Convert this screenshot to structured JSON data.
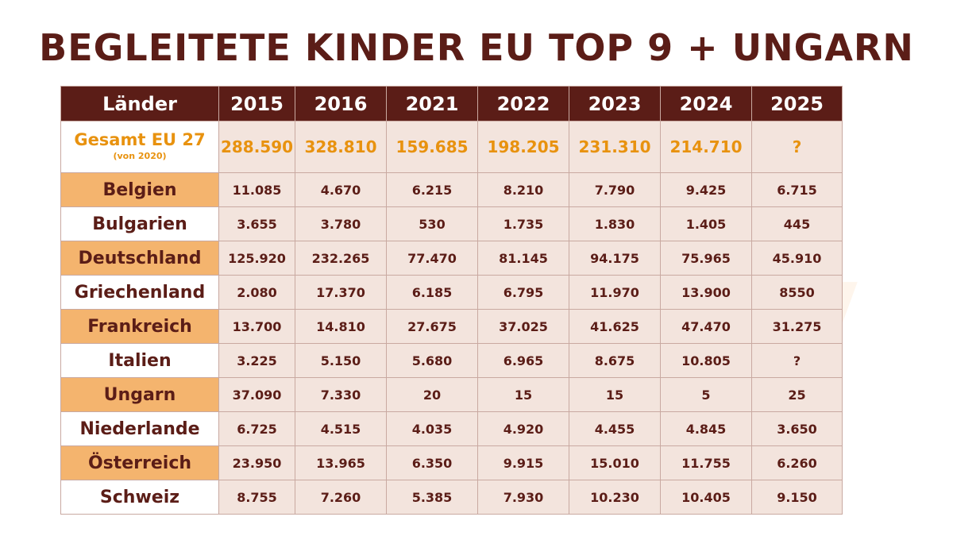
{
  "title": "BEGLEITETE KINDER EU TOP 9 + UNGARN",
  "header": {
    "category_label": "Länder",
    "years": [
      "2015",
      "2016",
      "2021",
      "2022",
      "2023",
      "2024",
      "2025"
    ]
  },
  "total": {
    "label": "Gesamt EU 27",
    "sublabel": "(von 2020)",
    "values": [
      "288.590",
      "328.810",
      "159.685",
      "198.205",
      "231.310",
      "214.710",
      "?"
    ]
  },
  "rows": [
    {
      "country": "Belgien",
      "values": [
        "11.085",
        "4.670",
        "6.215",
        "8.210",
        "7.790",
        "9.425",
        "6.715"
      ]
    },
    {
      "country": "Bulgarien",
      "values": [
        "3.655",
        "3.780",
        "530",
        "1.735",
        "1.830",
        "1.405",
        "445"
      ]
    },
    {
      "country": "Deutschland",
      "values": [
        "125.920",
        "232.265",
        "77.470",
        "81.145",
        "94.175",
        "75.965",
        "45.910"
      ]
    },
    {
      "country": "Griechenland",
      "values": [
        "2.080",
        "17.370",
        "6.185",
        "6.795",
        "11.970",
        "13.900",
        "8550"
      ]
    },
    {
      "country": "Frankreich",
      "values": [
        "13.700",
        "14.810",
        "27.675",
        "37.025",
        "41.625",
        "47.470",
        "31.275"
      ]
    },
    {
      "country": "Italien",
      "values": [
        "3.225",
        "5.150",
        "5.680",
        "6.965",
        "8.675",
        "10.805",
        "?"
      ]
    },
    {
      "country": "Ungarn",
      "values": [
        "37.090",
        "7.330",
        "20",
        "15",
        "15",
        "5",
        "25"
      ]
    },
    {
      "country": "Niederlande",
      "values": [
        "6.725",
        "4.515",
        "4.035",
        "4.920",
        "4.455",
        "4.845",
        "3.650"
      ]
    },
    {
      "country": "Österreich",
      "values": [
        "23.950",
        "13.965",
        "6.350",
        "9.915",
        "15.010",
        "11.755",
        "6.260"
      ]
    },
    {
      "country": "Schweiz",
      "values": [
        "8.755",
        "7.260",
        "5.385",
        "7.930",
        "10.230",
        "10.405",
        "9.150"
      ]
    }
  ],
  "colors": {
    "header_bg": "#5b1d17",
    "header_text": "#ffffff",
    "accent_orange": "#e8920f",
    "row_highlight": "#f4b46e",
    "cell_bg": "#f3e4dd",
    "text_dark": "#5b1d17"
  },
  "chart_data": {
    "type": "table",
    "title": "BEGLEITETE KINDER EU TOP 9 + UNGARN",
    "columns": [
      "Länder",
      "2015",
      "2016",
      "2021",
      "2022",
      "2023",
      "2024",
      "2025"
    ],
    "rows": [
      [
        "Gesamt EU 27 (von 2020)",
        "288.590",
        "328.810",
        "159.685",
        "198.205",
        "231.310",
        "214.710",
        "?"
      ],
      [
        "Belgien",
        "11.085",
        "4.670",
        "6.215",
        "8.210",
        "7.790",
        "9.425",
        "6.715"
      ],
      [
        "Bulgarien",
        "3.655",
        "3.780",
        "530",
        "1.735",
        "1.830",
        "1.405",
        "445"
      ],
      [
        "Deutschland",
        "125.920",
        "232.265",
        "77.470",
        "81.145",
        "94.175",
        "75.965",
        "45.910"
      ],
      [
        "Griechenland",
        "2.080",
        "17.370",
        "6.185",
        "6.795",
        "11.970",
        "13.900",
        "8550"
      ],
      [
        "Frankreich",
        "13.700",
        "14.810",
        "27.675",
        "37.025",
        "41.625",
        "47.470",
        "31.275"
      ],
      [
        "Italien",
        "3.225",
        "5.150",
        "5.680",
        "6.965",
        "8.675",
        "10.805",
        "?"
      ],
      [
        "Ungarn",
        "37.090",
        "7.330",
        "20",
        "15",
        "15",
        "5",
        "25"
      ],
      [
        "Niederlande",
        "6.725",
        "4.515",
        "4.035",
        "4.920",
        "4.455",
        "4.845",
        "3.650"
      ],
      [
        "Österreich",
        "23.950",
        "13.965",
        "6.350",
        "9.915",
        "15.010",
        "11.755",
        "6.260"
      ],
      [
        "Schweiz",
        "8.755",
        "7.260",
        "5.385",
        "7.930",
        "10.230",
        "10.405",
        "9.150"
      ]
    ]
  }
}
